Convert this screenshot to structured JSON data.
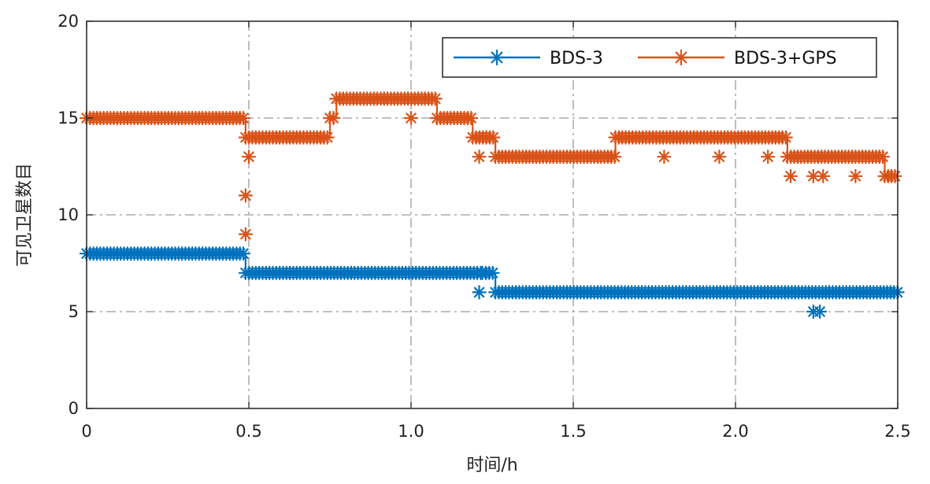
{
  "chart_data": {
    "type": "line",
    "xlabel": "时间/h",
    "ylabel": "可见卫星数目",
    "xlim": [
      0,
      2.5
    ],
    "ylim": [
      0,
      20
    ],
    "xticks": [
      "0",
      "0.5",
      "1.0",
      "1.5",
      "2.0",
      "2.5"
    ],
    "xtick_values": [
      0,
      0.5,
      1.0,
      1.5,
      2.0,
      2.5
    ],
    "yticks": [
      "0",
      "5",
      "10",
      "15",
      "20"
    ],
    "ytick_values": [
      0,
      5,
      10,
      15,
      20
    ],
    "grid": true,
    "legend_position": "top-right",
    "series": [
      {
        "name": "BDS-3",
        "color": "#0072BD",
        "marker": "asterisk",
        "steps": [
          {
            "from": 0.0,
            "to": 0.49,
            "y": 8
          },
          {
            "from": 0.49,
            "to": 1.22,
            "y": 7
          },
          {
            "from": 1.22,
            "to": 1.26,
            "y": 7
          },
          {
            "from": 1.26,
            "to": 2.5,
            "y": 6
          }
        ],
        "outliers": [
          {
            "x": 1.21,
            "y": 6
          },
          {
            "x": 2.24,
            "y": 5
          },
          {
            "x": 2.26,
            "y": 5
          }
        ]
      },
      {
        "name": "BDS-3+GPS",
        "color": "#D95319",
        "marker": "asterisk",
        "steps": [
          {
            "from": 0.0,
            "to": 0.49,
            "y": 15
          },
          {
            "from": 0.49,
            "to": 0.75,
            "y": 14
          },
          {
            "from": 0.75,
            "to": 0.77,
            "y": 15
          },
          {
            "from": 0.77,
            "to": 1.08,
            "y": 16
          },
          {
            "from": 1.08,
            "to": 1.19,
            "y": 15
          },
          {
            "from": 1.19,
            "to": 1.26,
            "y": 14
          },
          {
            "from": 1.26,
            "to": 1.63,
            "y": 13
          },
          {
            "from": 1.63,
            "to": 2.16,
            "y": 14
          },
          {
            "from": 2.16,
            "to": 2.46,
            "y": 13
          },
          {
            "from": 2.46,
            "to": 2.5,
            "y": 12
          }
        ],
        "outliers": [
          {
            "x": 0.49,
            "y": 9
          },
          {
            "x": 0.49,
            "y": 11
          },
          {
            "x": 0.5,
            "y": 13
          },
          {
            "x": 1.0,
            "y": 15
          },
          {
            "x": 1.21,
            "y": 13
          },
          {
            "x": 1.78,
            "y": 13
          },
          {
            "x": 1.95,
            "y": 13
          },
          {
            "x": 2.1,
            "y": 13
          },
          {
            "x": 2.17,
            "y": 12
          },
          {
            "x": 2.24,
            "y": 12
          },
          {
            "x": 2.27,
            "y": 12
          },
          {
            "x": 2.37,
            "y": 12
          }
        ]
      }
    ]
  }
}
